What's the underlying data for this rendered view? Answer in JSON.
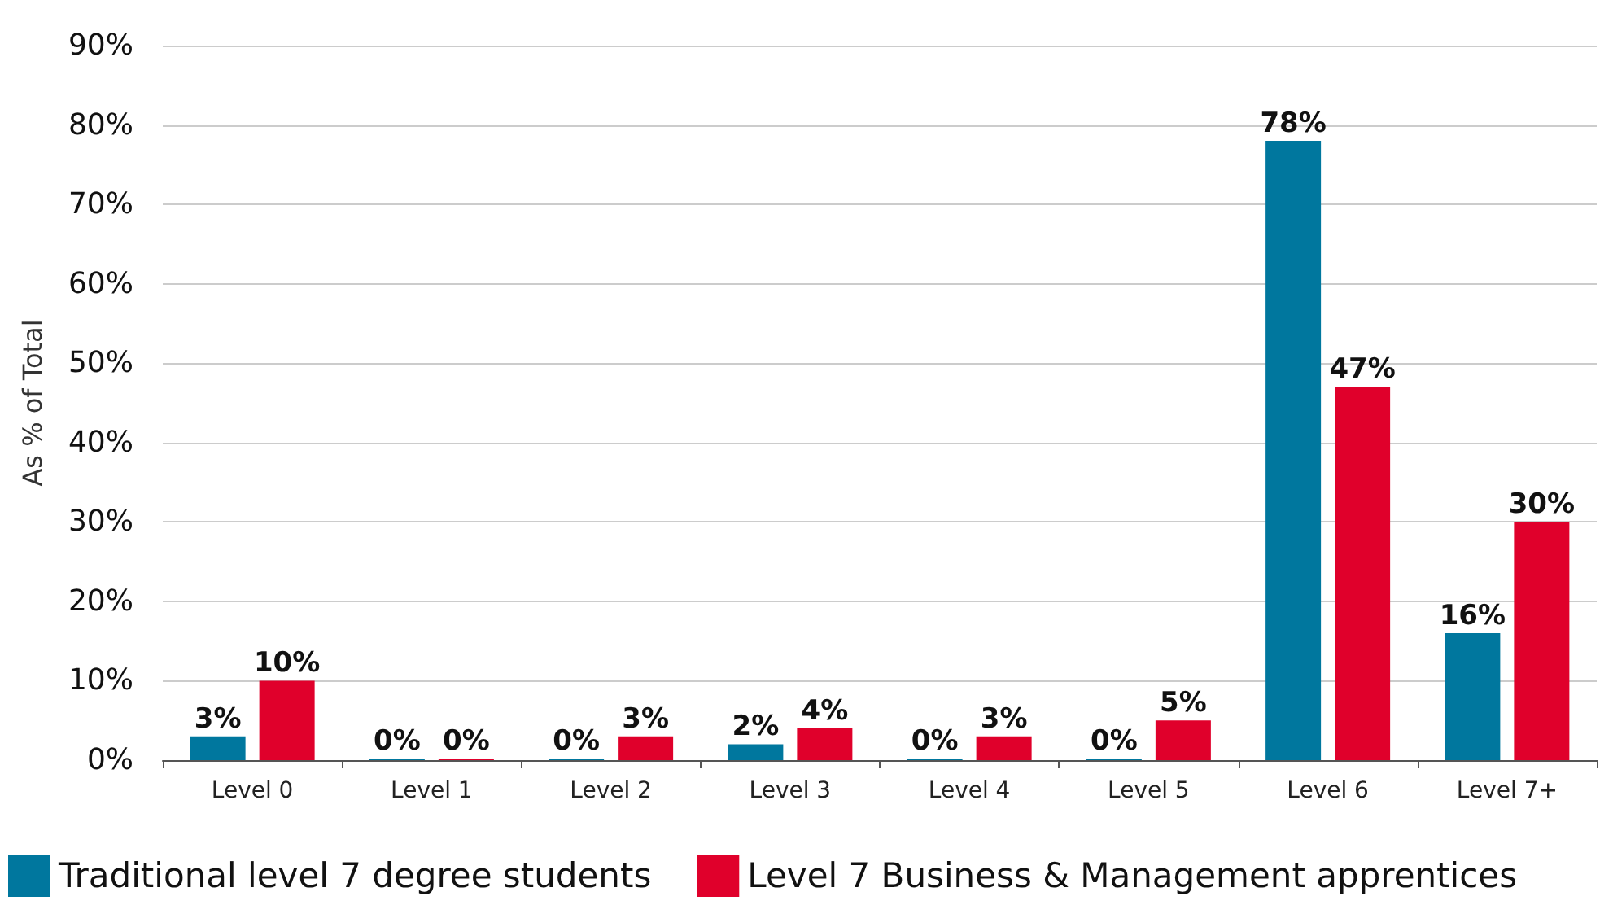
{
  "chart_data": {
    "type": "bar",
    "ylabel": "As % of Total",
    "categories": [
      "Level 0",
      "Level 1",
      "Level 2",
      "Level 3",
      "Level 4",
      "Level 5",
      "Level 6",
      "Level 7+"
    ],
    "series": [
      {
        "name": "Traditional level 7 degree students",
        "color": "#00779e",
        "values": [
          3,
          0,
          0,
          2,
          0,
          0,
          78,
          16
        ],
        "value_labels": [
          "3%",
          "0%",
          "0%",
          "2%",
          "0%",
          "0%",
          "78%",
          "16%"
        ]
      },
      {
        "name": "Level 7 Business & Management apprentices",
        "color": "#e0002b",
        "values": [
          10,
          0,
          3,
          4,
          3,
          5,
          47,
          30
        ],
        "value_labels": [
          "10%",
          "0%",
          "3%",
          "4%",
          "3%",
          "5%",
          "47%",
          "30%"
        ]
      }
    ],
    "ylim": [
      0,
      90
    ],
    "yticks": [
      {
        "value": 0,
        "label": "0%"
      },
      {
        "value": 10,
        "label": "10%"
      },
      {
        "value": 20,
        "label": "20%"
      },
      {
        "value": 30,
        "label": "30%"
      },
      {
        "value": 40,
        "label": "40%"
      },
      {
        "value": 50,
        "label": "50%"
      },
      {
        "value": 60,
        "label": "60%"
      },
      {
        "value": 70,
        "label": "70%"
      },
      {
        "value": 80,
        "label": "80%"
      },
      {
        "value": 90,
        "label": "90%"
      }
    ],
    "grid": "y",
    "legend": "bottom"
  }
}
